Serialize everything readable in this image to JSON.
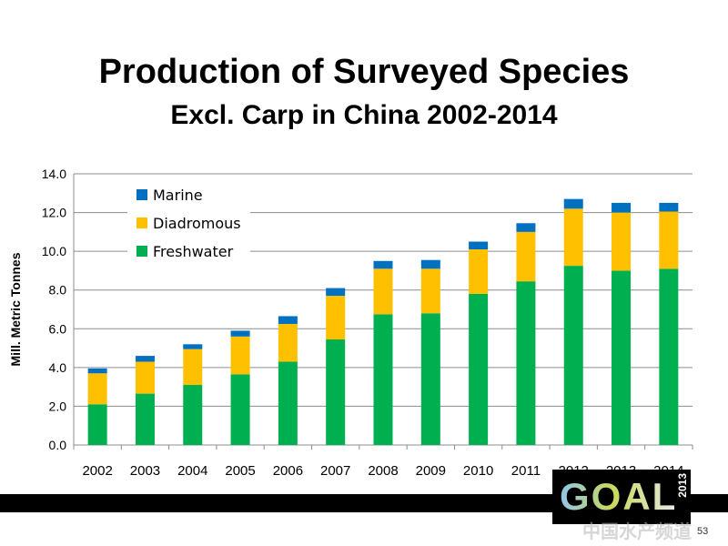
{
  "slide": {
    "title": "Production of Surveyed Species",
    "subtitle": "Excl. Carp in China 2002-2014",
    "page_number": "53",
    "logo_text": "GOAL",
    "logo_year": "2013",
    "watermark": "中国水产频道"
  },
  "chart_data": {
    "type": "bar",
    "stacked": true,
    "title": "",
    "xlabel": "",
    "ylabel": "Mill. Metric Tonnes",
    "ylim": [
      0,
      14
    ],
    "yticks": [
      "0.0",
      "2.0",
      "4.0",
      "6.0",
      "8.0",
      "10.0",
      "12.0",
      "14.0"
    ],
    "grid": true,
    "legend_position": "top-left",
    "categories": [
      "2002",
      "2003",
      "2004",
      "2005",
      "2006",
      "2007",
      "2008",
      "2009",
      "2010",
      "2011",
      "2012",
      "2013",
      "2014"
    ],
    "series": [
      {
        "name": "Freshwater",
        "color": "#00b050",
        "values": [
          2.1,
          2.65,
          3.1,
          3.65,
          4.3,
          5.45,
          6.75,
          6.8,
          7.8,
          8.45,
          9.25,
          9.0,
          9.1
        ]
      },
      {
        "name": "Diadromous",
        "color": "#ffc000",
        "values": [
          1.6,
          1.65,
          1.85,
          1.95,
          1.95,
          2.25,
          2.35,
          2.3,
          2.3,
          2.55,
          2.95,
          3.0,
          2.95
        ]
      },
      {
        "name": "Marine",
        "color": "#0070c0",
        "values": [
          0.25,
          0.3,
          0.25,
          0.3,
          0.4,
          0.4,
          0.4,
          0.45,
          0.4,
          0.45,
          0.5,
          0.5,
          0.45
        ]
      }
    ],
    "legend_order": [
      "Marine",
      "Diadromous",
      "Freshwater"
    ]
  }
}
